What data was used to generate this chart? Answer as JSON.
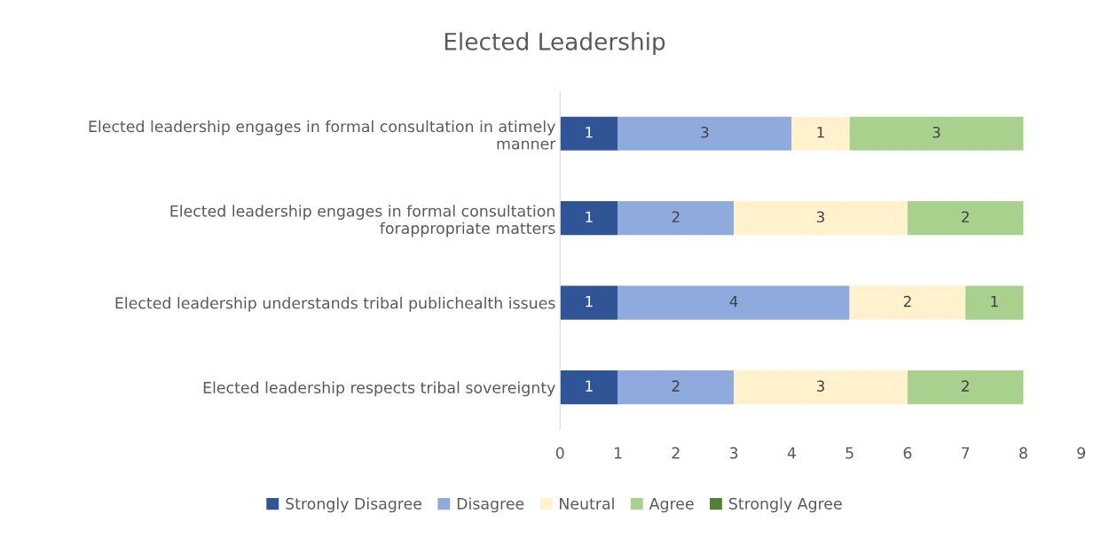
{
  "chart_data": {
    "type": "bar",
    "orientation": "horizontal",
    "stacked": true,
    "title": "Elected Leadership",
    "categories": [
      "Elected leadership engages in formal consultation in atimely\nmanner",
      "Elected leadership engages in formal consultation\nforappropriate matters",
      "Elected leadership understands tribal publichealth issues",
      "Elected leadership respects tribal sovereignty"
    ],
    "series": [
      {
        "name": "Strongly Disagree",
        "color": "#2f5597",
        "values": [
          1,
          1,
          1,
          1
        ],
        "value_labels": [
          "1",
          "1",
          "1",
          "1"
        ]
      },
      {
        "name": "Disagree",
        "color": "#8faadc",
        "values": [
          3,
          2,
          4,
          2
        ],
        "value_labels": [
          "3",
          "2",
          "4",
          "2"
        ]
      },
      {
        "name": "Neutral",
        "color": "#fff2cc",
        "values": [
          1,
          3,
          2,
          3
        ],
        "value_labels": [
          "1",
          "3",
          "2",
          "3"
        ]
      },
      {
        "name": "Agree",
        "color": "#a9d18e",
        "values": [
          3,
          2,
          1,
          2
        ],
        "value_labels": [
          "3",
          "2",
          "1",
          "2"
        ]
      },
      {
        "name": "Strongly Agree",
        "color": "#548235",
        "values": [
          0,
          0,
          0,
          0
        ],
        "value_labels": [
          null,
          null,
          null,
          null
        ]
      }
    ],
    "xlim": [
      0,
      9
    ],
    "xticks": [
      0,
      1,
      2,
      3,
      4,
      5,
      6,
      7,
      8,
      9
    ],
    "grid": false,
    "legend": "bottom"
  }
}
